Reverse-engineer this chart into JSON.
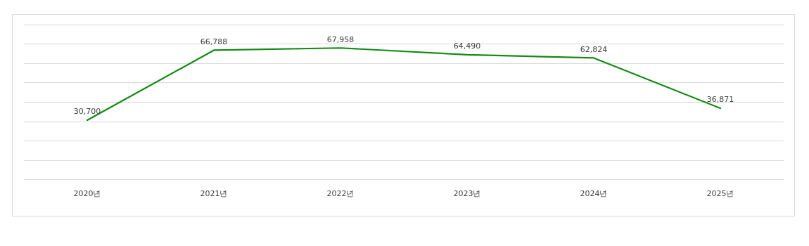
{
  "chart_data": {
    "type": "line",
    "categories": [
      "2020년",
      "2021년",
      "2022년",
      "2023년",
      "2024년",
      "2025년"
    ],
    "series": [
      {
        "color": "#138a13",
        "values": [
          30700,
          66788,
          67958,
          64490,
          62824,
          36871
        ],
        "value_labels": [
          "30,700",
          "66,788",
          "67,958",
          "64,490",
          "62,824",
          "36,871"
        ]
      }
    ],
    "tick_labels": "x",
    "grid": "y",
    "marker": "none",
    "line_style": "solid",
    "legend": false
  }
}
